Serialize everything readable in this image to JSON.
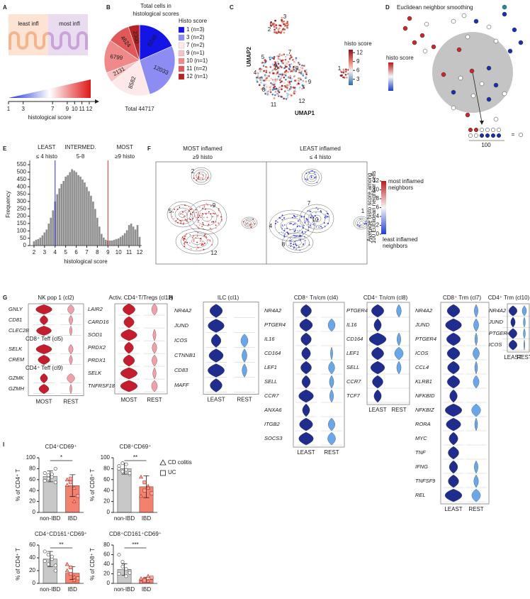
{
  "panel_labels": [
    "A",
    "B",
    "C",
    "D",
    "E",
    "F",
    "G",
    "H",
    "I"
  ],
  "panel_a": {
    "least": "least infl",
    "most": "most infl",
    "ticks": [
      1,
      3,
      7,
      9,
      10,
      11,
      12
    ],
    "lim": [
      1,
      12
    ],
    "axis_label": "histological score"
  },
  "chart_data": [
    {
      "type": "pie",
      "title": [
        "Total cells in",
        "histological scores"
      ],
      "total": "Total 44717",
      "legend_title": "Histo score",
      "categories": [
        "1 (n=3)",
        "3 (n=2)",
        "7 (n=2)",
        "9 (n=1)",
        "10 (n=1)",
        "11 (n=2)",
        "12 (n=1)"
      ],
      "values": [
        8248,
        12033,
        8582,
        2131,
        6799,
        4624,
        2300
      ],
      "colors": [
        "#1414e6",
        "#8c8cf2",
        "#fde9e9",
        "#f9c2c2",
        "#f08a8a",
        "#e05858",
        "#b52222"
      ]
    },
    {
      "type": "histogram",
      "x_label": "histological score",
      "y_label": "Frequency",
      "color": "#8f8f8f",
      "bins": [
        1.9,
        2.1,
        2.3,
        2.5,
        2.7,
        2.9,
        3.1,
        3.3,
        3.5,
        3.7,
        3.9,
        4.1,
        4.3,
        4.5,
        4.7,
        4.9,
        5.1,
        5.3,
        5.5,
        5.7,
        5.9,
        6.1,
        6.3,
        6.5,
        6.7,
        6.9,
        7.1,
        7.3,
        7.5,
        7.7,
        7.9,
        8.1,
        8.3,
        8.5,
        8.7,
        8.9,
        9.1,
        9.3,
        9.5,
        9.7,
        9.9,
        10.1,
        10.3,
        10.5,
        10.7,
        10.9,
        11.1,
        11.3,
        11.5,
        11.7,
        11.9,
        12.1
      ],
      "counts": [
        30,
        40,
        45,
        55,
        70,
        90,
        110,
        150,
        190,
        240,
        300,
        350,
        390,
        420,
        440,
        470,
        480,
        500,
        520,
        510,
        500,
        480,
        470,
        450,
        430,
        400,
        370,
        340,
        300,
        250,
        190,
        130,
        80,
        55,
        40,
        35,
        35,
        35,
        40,
        45,
        50,
        60,
        70,
        85,
        105,
        140,
        150,
        130,
        110,
        140,
        60
      ],
      "xlim": [
        1.6,
        12.2
      ],
      "xticks": [
        2,
        3,
        4,
        5,
        6,
        7,
        8,
        9,
        10,
        11,
        12
      ],
      "ylim": [
        0,
        560
      ],
      "yticks": [
        0,
        50,
        100,
        150,
        200,
        250,
        300,
        350,
        400,
        450,
        500,
        550
      ],
      "thresholds": [
        {
          "x": 4,
          "color": "#2a2ae0"
        },
        {
          "x": 9,
          "color": "#e02a2a"
        }
      ],
      "annotations": [
        {
          "title": "LEAST",
          "sub": "≤ 4 histo",
          "color": "#2a2ae0"
        },
        {
          "title": "INTERMED.",
          "sub": "5-8",
          "color": "#222222"
        },
        {
          "title": "MOST",
          "sub": "≥9 histo",
          "color": "#e02a2a"
        }
      ]
    },
    {
      "type": "bar",
      "title": "CD4⁺CD69⁺",
      "y_label": "% of CD4⁺ T",
      "categories": [
        "non-IBD",
        "IBD"
      ],
      "values": [
        66,
        49
      ],
      "errors": [
        10,
        20
      ],
      "points": [
        [
          72,
          68,
          65,
          80,
          58,
          62,
          70,
          55
        ],
        [
          60,
          55,
          45,
          30,
          50,
          62,
          20
        ]
      ],
      "colors": [
        "#c8c8c8",
        "#f4806e"
      ],
      "ylim": [
        0,
        100
      ],
      "yticks": [
        0,
        20,
        40,
        60,
        80,
        100
      ],
      "significance": "*"
    },
    {
      "type": "bar",
      "title": "CD8⁺CD69⁺",
      "y_label": "% of CD8⁺ T",
      "categories": [
        "non-IBD",
        "IBD"
      ],
      "values": [
        80,
        47
      ],
      "errors": [
        10,
        20
      ],
      "points": [
        [
          85,
          90,
          78,
          70,
          80,
          75,
          88,
          72
        ],
        [
          65,
          40,
          48,
          35,
          30,
          55,
          45
        ]
      ],
      "colors": [
        "#c8c8c8",
        "#f4806e"
      ],
      "ylim": [
        0,
        100
      ],
      "yticks": [
        0,
        20,
        40,
        60,
        80,
        100
      ],
      "significance": "**"
    },
    {
      "type": "bar",
      "title": "CD4⁺CD161⁺CD69⁺",
      "y_label": "% of CD4⁺ T",
      "categories": [
        "non-IBD",
        "IBD"
      ],
      "values": [
        38,
        16
      ],
      "errors": [
        12,
        10
      ],
      "points": [
        [
          50,
          45,
          38,
          28,
          35,
          30,
          42,
          20
        ],
        [
          20,
          15,
          10,
          8,
          30,
          25,
          5
        ]
      ],
      "colors": [
        "#c8c8c8",
        "#f4806e"
      ],
      "ylim": [
        0,
        60
      ],
      "yticks": [
        0,
        20,
        40,
        60
      ],
      "significance": "**"
    },
    {
      "type": "bar",
      "title": "CD8⁺CD161⁺CD69⁺",
      "y_label": "% of CD8⁺ T",
      "categories": [
        "non-IBD",
        "IBD"
      ],
      "values": [
        29,
        8
      ],
      "errors": [
        12,
        5
      ],
      "points": [
        [
          60,
          45,
          30,
          25,
          20,
          35,
          15,
          22
        ],
        [
          10,
          8,
          5,
          12,
          3,
          6,
          15
        ]
      ],
      "colors": [
        "#c8c8c8",
        "#f4806e"
      ],
      "ylim": [
        0,
        80
      ],
      "yticks": [
        0,
        20,
        40,
        60,
        80
      ],
      "significance": "***"
    }
  ],
  "panel_c": {
    "x_label": "UMAP1",
    "y_label": "UMAP2",
    "colorbar_title": "histo score",
    "colorbar_ticks": [
      3,
      6,
      9,
      12
    ],
    "colorbar_lim": [
      1,
      13
    ],
    "clusters": [
      "3",
      "2",
      "7",
      "5",
      "6",
      "10",
      "4",
      "9",
      "8",
      "12",
      "11",
      "1"
    ]
  },
  "panel_d": {
    "title": "Euclidean neighbor smoothing",
    "colorbar_title": "histo score",
    "count": "100",
    "equals_sign": "="
  },
  "panel_f": {
    "most_title": "MOST inflamed",
    "most_sub": "≥9 histo",
    "least_title": "LEAST inflamed",
    "least_sub": "≤ 4 histo",
    "clusters_most": [
      "2",
      "5",
      "9",
      "12"
    ],
    "clusters_least": [
      "7",
      "10",
      "4",
      "8",
      "1"
    ],
    "colorbar_ticks": [
      0,
      2,
      4,
      6,
      8,
      10,
      12
    ],
    "colorbar_lim": [
      0,
      12
    ],
    "colorbar_caption": [
      "Average histo score among",
      "100 Euclidean neighbor cells"
    ],
    "high_label": [
      "most inflamed",
      "neighbors"
    ],
    "low_label": [
      "least inflamed",
      "neighbors"
    ]
  },
  "panel_g": {
    "plots": [
      {
        "sections": [
          {
            "title": "NK pop 1 (cl2)",
            "color": "#e8962a",
            "genes": [
              "GNLY",
              "CD81",
              "CLEC2B"
            ]
          },
          {
            "title": "CD8⁺ Teff (cl5)",
            "color": "#2aa02a",
            "genes": [
              "SELK",
              "CREM"
            ]
          },
          {
            "title": "CD4⁺ Teff (cl9)",
            "color": "#3a8ad8",
            "genes": [
              "GZMK",
              "GZMH"
            ]
          }
        ],
        "x_labels": [
          "MOST",
          "REST"
        ]
      },
      {
        "sections": [
          {
            "title": "Activ. CD4⁺T/Tregs (cl12)",
            "color": "#c8a000",
            "genes": [
              "LAIR2",
              "CARD16",
              "SOD1",
              "PRDX2",
              "PRDX1",
              "SELK",
              "TNFRSF18"
            ]
          }
        ],
        "x_labels": [
          "MOST",
          "REST"
        ]
      }
    ]
  },
  "panel_h": {
    "plots": [
      {
        "title": "ILC (cl1)",
        "color": "#d94fd9",
        "genes": [
          "NR4A2",
          "JUND",
          "ICOS",
          "CTNNB1",
          "CD83",
          "MAFF"
        ],
        "x_labels": [
          "LEAST",
          "REST"
        ]
      },
      {
        "title": "CD8⁺ Tn/cm (cl4)",
        "color": "#7ab000",
        "genes": [
          "NR4A2",
          "PTGER4",
          "IL16",
          "CD164",
          "LEF1",
          "SELL",
          "CCR7",
          "ANXA6",
          "ITGB2",
          "SOCS3"
        ],
        "x_labels": [
          "LEAST",
          "REST"
        ]
      },
      {
        "title": "CD4⁺ Tn/cm (cl8)",
        "color": "#f07070",
        "genes": [
          "PTGER4",
          "IL16",
          "CD164",
          "LEF1",
          "SELL",
          "CCR7",
          "TCF7"
        ],
        "x_labels": [
          "LEAST",
          "REST"
        ]
      },
      {
        "title": "CD8⁺ Trm (cl7)",
        "color": "#20b0d0",
        "genes": [
          "NR4A2",
          "JUND",
          "PTGER4",
          "ICOS",
          "CCL4",
          "KLRB1",
          "NFKBID",
          "NFKBIZ",
          "RORA",
          "MYC",
          "TNF",
          "IFNG",
          "TNFSF9",
          "REL"
        ],
        "x_labels": [
          "LEAST",
          "REST"
        ]
      },
      {
        "title": "CD4⁺ Trm (cl10)",
        "color": "#20b0d0",
        "genes": [
          "NR4A2",
          "JUND",
          "PTGER4",
          "ICOS"
        ],
        "x_labels": [
          "LEAST",
          "REST"
        ]
      }
    ]
  },
  "panel_i_legend": [
    "CD colitis",
    "UC"
  ]
}
